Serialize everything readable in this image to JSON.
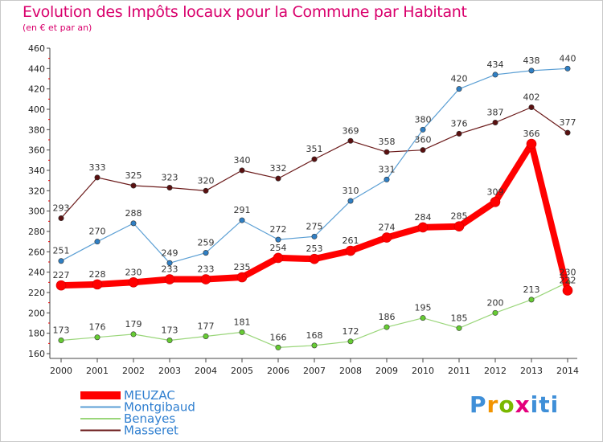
{
  "title": "Evolution des Impôts locaux pour la Commune par Habitant",
  "subtitle": "(en € et par an)",
  "brand": "Proxiti",
  "chart_data": {
    "type": "line",
    "x": [
      2000,
      2001,
      2002,
      2003,
      2004,
      2005,
      2006,
      2007,
      2008,
      2009,
      2010,
      2011,
      2012,
      2013,
      2014
    ],
    "ylim": [
      160,
      460
    ],
    "yticks": [
      160,
      180,
      200,
      220,
      240,
      260,
      280,
      300,
      320,
      340,
      360,
      380,
      400,
      420,
      440,
      460
    ],
    "grid": false,
    "legend_position": "bottom-left",
    "series": [
      {
        "name": "Masseret",
        "color": "#6b1a1a",
        "marker": "#5a1010",
        "width": 1.2,
        "values": [
          293,
          333,
          325,
          323,
          320,
          340,
          332,
          351,
          369,
          358,
          360,
          376,
          387,
          402,
          377
        ],
        "labels": [
          "293",
          "333",
          "325",
          "323",
          "320",
          "340",
          "332",
          "351",
          "369",
          "358",
          "360",
          "376",
          "387",
          "402",
          "377"
        ]
      },
      {
        "name": "Montgibaud",
        "color": "#5b9fd4",
        "marker": "#2f7fc4",
        "width": 1.2,
        "values": [
          251,
          270,
          288,
          249,
          259,
          291,
          272,
          275,
          310,
          331,
          380,
          420,
          434,
          438,
          440
        ],
        "labels": [
          "251",
          "270",
          "288",
          "249",
          "259",
          "291",
          "272",
          "275",
          "310",
          "331",
          "380",
          "420",
          "434",
          "438",
          "440"
        ]
      },
      {
        "name": "Benayes",
        "color": "#9ad67a",
        "marker": "#66cc33",
        "width": 1.2,
        "values": [
          173,
          176,
          179,
          173,
          177,
          181,
          166,
          168,
          172,
          186,
          195,
          185,
          200,
          213,
          230
        ],
        "labels": [
          "173",
          "176",
          "179",
          "173",
          "177",
          "181",
          "166",
          "168",
          "172",
          "186",
          "195",
          "185",
          "200",
          "213",
          "230"
        ]
      },
      {
        "name": "MEUZAC",
        "color": "#ff0000",
        "marker": "#ff0000",
        "width": 8,
        "values": [
          227,
          228,
          230,
          233,
          233,
          235,
          254,
          253,
          261,
          274,
          284,
          285,
          309,
          366,
          222
        ],
        "labels": [
          "227",
          "228",
          "230",
          "233",
          "233",
          "235",
          "254",
          "253",
          "261",
          "274",
          "284",
          "285",
          "309",
          "366",
          "222"
        ]
      }
    ],
    "legend": [
      {
        "name": "MEUZAC",
        "color": "#ff0000",
        "width": 10
      },
      {
        "name": "Montgibaud",
        "color": "#5b9fd4",
        "width": 2
      },
      {
        "name": "Benayes",
        "color": "#9ad67a",
        "width": 2
      },
      {
        "name": "Masseret",
        "color": "#6b1a1a",
        "width": 2
      }
    ]
  }
}
